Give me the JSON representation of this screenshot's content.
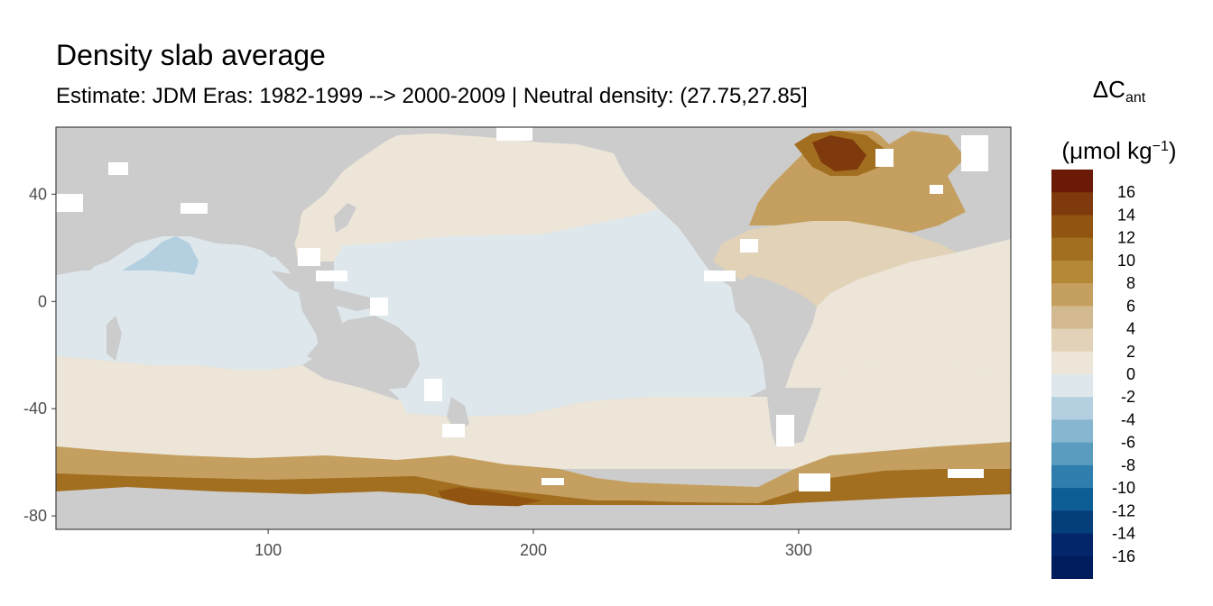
{
  "title": "Density slab average",
  "subtitle": "Estimate: JDM Eras: 1982-1999 --> 2000-2009 | Neutral density: (27.75,27.85]",
  "legend": {
    "title_main": "ΔC",
    "title_sub": "ant",
    "units_open": "(μmol kg",
    "units_sup": "−1",
    "units_close": ")",
    "bins": [
      {
        "label": "16",
        "color": "#6a1a06"
      },
      {
        "label": "14",
        "color": "#7e3a0c"
      },
      {
        "label": "12",
        "color": "#915511"
      },
      {
        "label": "10",
        "color": "#a26e1f"
      },
      {
        "label": "8",
        "color": "#b58837"
      },
      {
        "label": "6",
        "color": "#c49f5f"
      },
      {
        "label": "4",
        "color": "#d3b98f"
      },
      {
        "label": "2",
        "color": "#e2d3b8"
      },
      {
        "label": "0",
        "color": "#ece5d8"
      },
      {
        "label": "-2",
        "color": "#dde7ec"
      },
      {
        "label": "-4",
        "color": "#b4cfe0"
      },
      {
        "label": "-6",
        "color": "#87b6d0"
      },
      {
        "label": "-8",
        "color": "#5a9cc0"
      },
      {
        "label": "-10",
        "color": "#2f7eae"
      },
      {
        "label": "-12",
        "color": "#0e5e96"
      },
      {
        "label": "-14",
        "color": "#043f7a"
      },
      {
        "label": "-16",
        "color": "#03256a"
      }
    ],
    "extra_swatch": "#001c5c"
  },
  "chart_data": {
    "type": "heatmap",
    "title": "Density slab average",
    "subtitle": "Estimate: JDM Eras: 1982-1999 --> 2000-2009 | Neutral density: (27.75,27.85]",
    "xlabel": "",
    "ylabel": "",
    "xlim": [
      20,
      380
    ],
    "ylim": [
      -85,
      65
    ],
    "x_ticks": [
      100,
      200,
      300
    ],
    "y_ticks": [
      40,
      0,
      -40,
      -80
    ],
    "land_color": "#cccccc",
    "ocean_fill_regions": [
      {
        "region": "Pacific tropics/subtropics",
        "value_bin": "0 to -2",
        "color": "#dde7ec"
      },
      {
        "region": "Indian Ocean",
        "value_bin": "0 to -2",
        "color": "#dde7ec"
      },
      {
        "region": "North Pacific",
        "value_bin": "0 to 2",
        "color": "#ece5d8"
      },
      {
        "region": "Southern Ocean",
        "value_bin": "0 to 2",
        "color": "#ece5d8"
      },
      {
        "region": "South Atlantic",
        "value_bin": "0 to 2",
        "color": "#ece5d8"
      },
      {
        "region": "North Atlantic",
        "value_bin": "6 to 14",
        "color": "#b58837"
      },
      {
        "region": "Antarctic margin",
        "value_bin": "6 to 12",
        "color": "#a26e1f"
      },
      {
        "region": "Arabian Sea",
        "value_bin": "-4 to -6",
        "color": "#b4cfe0"
      }
    ]
  }
}
